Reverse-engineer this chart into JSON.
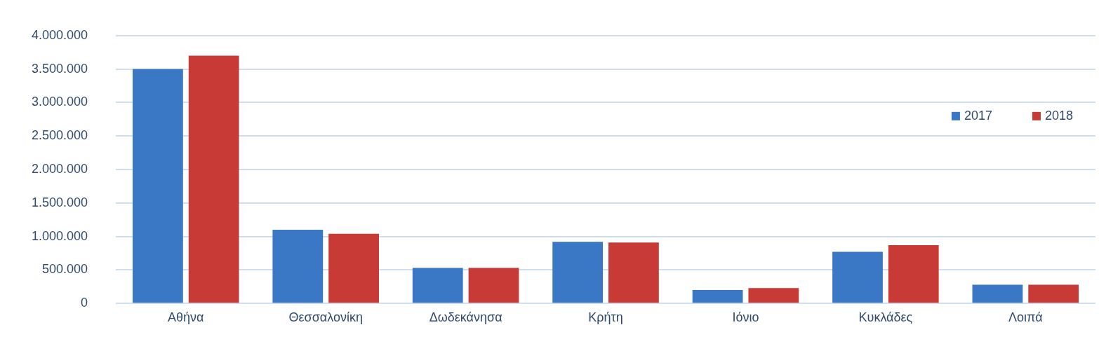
{
  "chart_data": {
    "type": "bar",
    "categories": [
      "Αθήνα",
      "Θεσσαλονίκη",
      "Δωδεκάνησα",
      "Κρήτη",
      "Ιόνιο",
      "Κυκλάδες",
      "Λοιπά"
    ],
    "series": [
      {
        "name": "2017",
        "color": "#3a78c6",
        "values": [
          3500000,
          1100000,
          530000,
          920000,
          200000,
          770000,
          280000
        ]
      },
      {
        "name": "2018",
        "color": "#c83a36",
        "values": [
          3700000,
          1040000,
          530000,
          910000,
          230000,
          870000,
          280000
        ]
      }
    ],
    "ylim": [
      0,
      4000000
    ],
    "yticks": [
      {
        "value": 0,
        "label": "0"
      },
      {
        "value": 500000,
        "label": "500.000"
      },
      {
        "value": 1000000,
        "label": "1.000.000"
      },
      {
        "value": 1500000,
        "label": "1.500.000"
      },
      {
        "value": 2000000,
        "label": "2.000.000"
      },
      {
        "value": 2500000,
        "label": "2.500.000"
      },
      {
        "value": 3000000,
        "label": "3.000.000"
      },
      {
        "value": 3500000,
        "label": "3.500.000"
      },
      {
        "value": 4000000,
        "label": "4.000.000"
      }
    ],
    "grid": "y",
    "legend": "top right"
  }
}
